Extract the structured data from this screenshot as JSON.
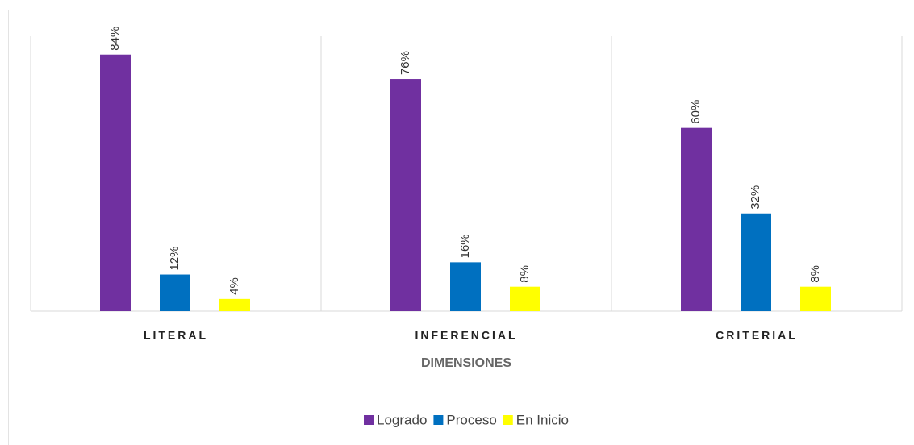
{
  "chart_data": {
    "type": "bar",
    "categories": [
      "LITERAL",
      "INFERENCIAL",
      "CRITERIAL"
    ],
    "x_label": "DIMENSIONES",
    "series": [
      {
        "name": "Logrado",
        "color": "#7030a0",
        "values": [
          84,
          76,
          60
        ],
        "value_labels": [
          "84%",
          "76%",
          "60%"
        ]
      },
      {
        "name": "Proceso",
        "color": "#0070c0",
        "values": [
          12,
          16,
          32
        ],
        "value_labels": [
          "12%",
          "16%",
          "32%"
        ]
      },
      {
        "name": "En Inicio",
        "color": "#ffff00",
        "values": [
          4,
          8,
          8
        ],
        "value_labels": [
          "4%",
          "8%",
          "8%"
        ]
      }
    ],
    "ylim": [
      0,
      90
    ],
    "legend": "bottom"
  }
}
